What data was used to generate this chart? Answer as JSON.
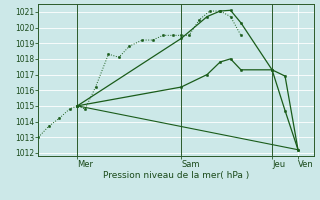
{
  "background_color": "#cce8e8",
  "grid_color": "#b0d8d8",
  "line_color": "#1a5c1a",
  "vline_color": "#2a5a2a",
  "ylim": [
    1011.8,
    1021.5
  ],
  "yticks": [
    1012,
    1013,
    1014,
    1015,
    1016,
    1017,
    1018,
    1019,
    1020,
    1021
  ],
  "xlim": [
    0.0,
    10.6
  ],
  "xlabel": "Pression niveau de la mer( hPa )",
  "vlines_x": [
    1.5,
    5.5,
    9.0
  ],
  "xtick_positions": [
    1.5,
    5.5,
    9.0,
    10.0
  ],
  "xtick_labels": [
    "Mer",
    "Sam",
    "Jeu",
    "Ven"
  ],
  "series_dotted": {
    "x": [
      0.0,
      0.4,
      0.8,
      1.2,
      1.5,
      1.8,
      2.2,
      2.7,
      3.1,
      3.5,
      4.0,
      4.4,
      4.8,
      5.2,
      5.5,
      5.8,
      6.2,
      6.6,
      7.0,
      7.4,
      7.8
    ],
    "y": [
      1013.0,
      1013.7,
      1014.2,
      1014.8,
      1015.0,
      1014.8,
      1016.2,
      1018.3,
      1018.1,
      1018.8,
      1019.2,
      1019.2,
      1019.5,
      1019.5,
      1019.5,
      1019.5,
      1020.5,
      1021.05,
      1021.05,
      1020.7,
      1019.5
    ]
  },
  "series_upper": {
    "x": [
      1.5,
      5.5,
      6.5,
      7.0,
      7.4,
      7.8,
      9.0,
      9.5,
      10.0
    ],
    "y": [
      1015.0,
      1019.3,
      1020.7,
      1021.05,
      1021.1,
      1020.3,
      1017.3,
      1016.9,
      1012.2
    ]
  },
  "series_middle": {
    "x": [
      1.5,
      5.5,
      6.5,
      7.0,
      7.4,
      7.8,
      9.0,
      9.5,
      10.0
    ],
    "y": [
      1015.0,
      1016.2,
      1017.0,
      1017.8,
      1018.0,
      1017.3,
      1017.3,
      1014.7,
      1012.2
    ]
  },
  "series_lower": {
    "x": [
      1.5,
      10.0
    ],
    "y": [
      1015.0,
      1012.2
    ]
  },
  "figsize": [
    3.2,
    2.0
  ],
  "dpi": 100
}
